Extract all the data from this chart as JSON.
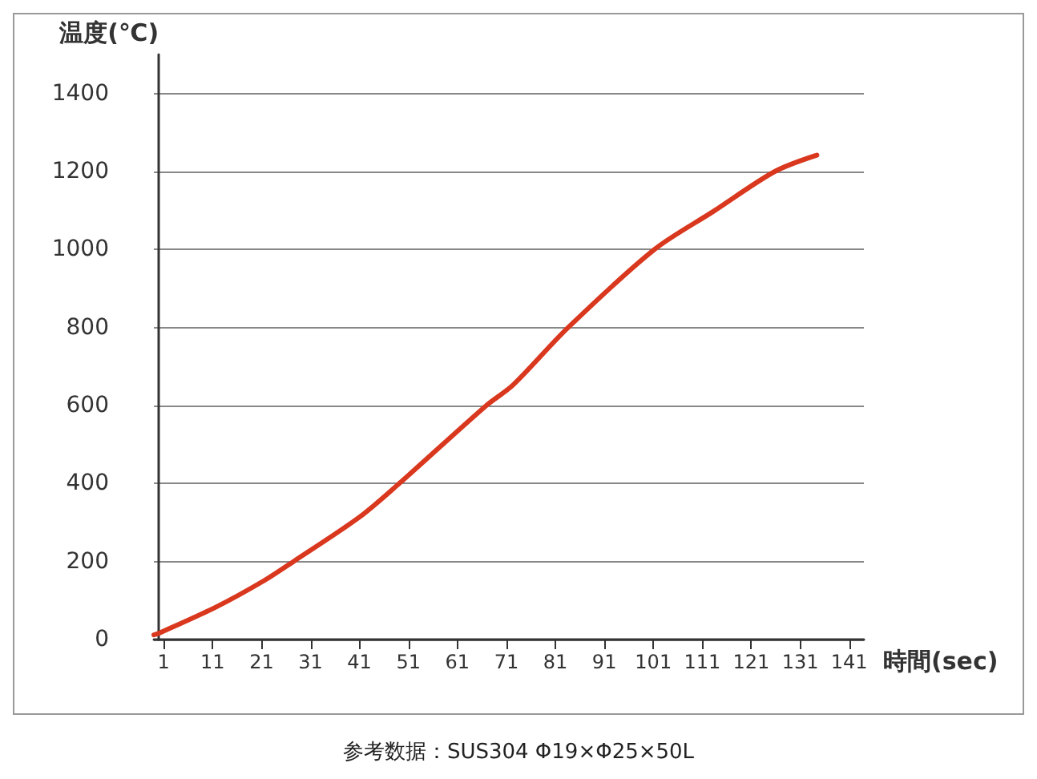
{
  "chart_data": {
    "type": "line",
    "xlabel": "時間(sec)",
    "ylabel": "温度(℃)",
    "annotations": [
      "参考数据：SUS304 Φ19×Φ25×50L"
    ],
    "series": [
      {
        "color": "#d9381e",
        "x": [
          -1,
          0,
          11.8,
          21.5,
          27.5,
          41,
          49.1,
          66.9,
          72.3,
          83.6,
          101.2,
          113.3,
          125.8,
          134.4
        ],
        "values": [
          12,
          16,
          84,
          151,
          200,
          314,
          400,
          600,
          652,
          800,
          1000,
          1098,
          1200,
          1242
        ]
      }
    ],
    "xlim": [
      -1,
      144
    ],
    "xticks": [
      1,
      11,
      21,
      31,
      41,
      51,
      61,
      71,
      81,
      91,
      101,
      111,
      121,
      131,
      141
    ],
    "ylim": [
      0,
      1500
    ],
    "yticks": [
      0,
      200,
      400,
      600,
      800,
      1000,
      1200,
      1400
    ],
    "grid": "y",
    "marker": "none",
    "line_style": "solid"
  }
}
